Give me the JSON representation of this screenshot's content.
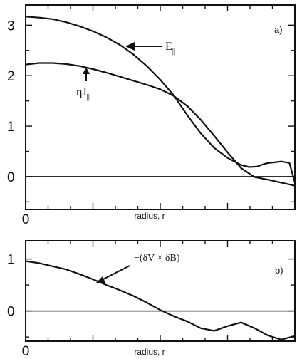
{
  "chart_data": [
    {
      "type": "line",
      "panel_tag": "a)",
      "xlabel": "radius, r",
      "x_tick_labels": [
        "0"
      ],
      "y_tick_labels": [
        "0",
        "1",
        "2",
        "3"
      ],
      "xlim": [
        0,
        1
      ],
      "ylim": [
        -0.65,
        3.4
      ],
      "grid": false,
      "zero_line": true,
      "annotations": [
        {
          "label": "E",
          "subscript": "||",
          "arrow_to": [
            0.41,
            2.78
          ]
        },
        {
          "label": "ηJ",
          "subscript": "||",
          "arrow_to": [
            0.25,
            2.25
          ]
        }
      ],
      "series": [
        {
          "key": "E_par",
          "x": [
            0,
            0.05,
            0.1,
            0.15,
            0.2,
            0.25,
            0.3,
            0.35,
            0.4,
            0.45,
            0.5,
            0.55,
            0.6,
            0.65,
            0.7,
            0.75,
            0.8,
            0.83,
            0.86,
            0.88,
            0.9,
            0.92,
            0.95,
            0.98,
            1.0
          ],
          "y": [
            3.17,
            3.15,
            3.12,
            3.06,
            2.98,
            2.88,
            2.76,
            2.61,
            2.42,
            2.19,
            1.92,
            1.61,
            1.22,
            0.86,
            0.57,
            0.37,
            0.23,
            0.19,
            0.2,
            0.24,
            0.27,
            0.28,
            0.3,
            0.27,
            -0.12
          ]
        },
        {
          "key": "eta_J_par",
          "x": [
            0,
            0.05,
            0.1,
            0.15,
            0.2,
            0.25,
            0.3,
            0.35,
            0.4,
            0.45,
            0.5,
            0.55,
            0.6,
            0.65,
            0.7,
            0.75,
            0.8,
            0.85,
            0.9,
            0.95,
            1.0
          ],
          "y": [
            2.22,
            2.25,
            2.25,
            2.23,
            2.19,
            2.13,
            2.06,
            1.98,
            1.9,
            1.82,
            1.73,
            1.6,
            1.4,
            1.13,
            0.81,
            0.48,
            0.17,
            -0.01,
            -0.06,
            -0.12,
            -0.18
          ]
        }
      ]
    },
    {
      "type": "line",
      "panel_tag": "b)",
      "xlabel": "radius, r",
      "x_tick_labels": [
        "0"
      ],
      "y_tick_labels": [
        "0",
        "1"
      ],
      "xlim": [
        0,
        1
      ],
      "ylim": [
        -0.58,
        1.35
      ],
      "grid": false,
      "zero_line": true,
      "annotations": [
        {
          "label": "−(δV × δB)",
          "arrow_to": [
            0.26,
            0.58
          ]
        }
      ],
      "series": [
        {
          "key": "dV_x_dB",
          "x": [
            0,
            0.05,
            0.1,
            0.15,
            0.2,
            0.25,
            0.3,
            0.35,
            0.4,
            0.45,
            0.5,
            0.55,
            0.6,
            0.65,
            0.7,
            0.75,
            0.8,
            0.85,
            0.9,
            0.95,
            1.0
          ],
          "y": [
            0.96,
            0.92,
            0.86,
            0.8,
            0.71,
            0.61,
            0.5,
            0.4,
            0.29,
            0.16,
            0.02,
            -0.1,
            -0.2,
            -0.33,
            -0.38,
            -0.29,
            -0.22,
            -0.33,
            -0.47,
            -0.55,
            -0.48
          ]
        }
      ]
    }
  ]
}
